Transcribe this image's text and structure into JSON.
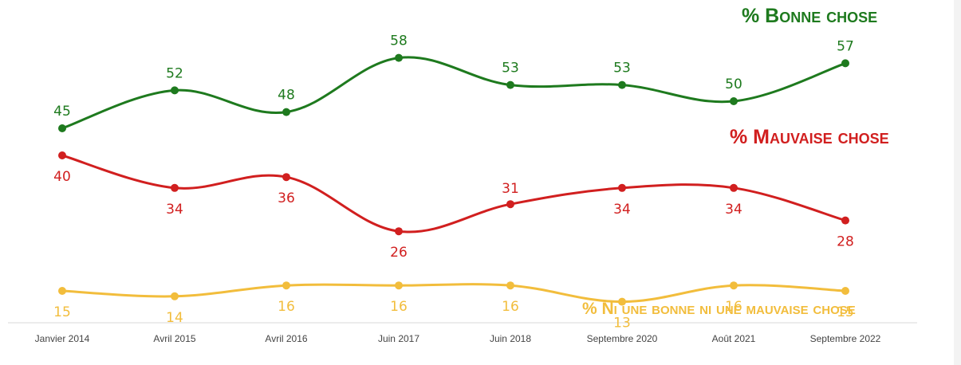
{
  "chart_data": {
    "type": "line",
    "categories": [
      "Janvier 2014",
      "Avril 2015",
      "Avril 2016",
      "Juin 2017",
      "Juin 2018",
      "Septembre 2020",
      "Août 2021",
      "Septembre 2022"
    ],
    "ylim": [
      0,
      60
    ],
    "grid": false,
    "series": [
      {
        "name": "% Bonne chose",
        "color": "#1e7a1e",
        "values": [
          45,
          52,
          48,
          58,
          53,
          53,
          50,
          57
        ],
        "label_position": "above"
      },
      {
        "name": "% Mauvaise chose",
        "color": "#d11f1f",
        "values": [
          40,
          34,
          36,
          26,
          31,
          34,
          34,
          28
        ],
        "label_position": "mixed"
      },
      {
        "name": "% Ni une bonne ni une mauvaise chose",
        "color": "#f2bd3c",
        "values": [
          15,
          14,
          16,
          16,
          16,
          13,
          16,
          15
        ],
        "label_position": "below"
      }
    ]
  }
}
